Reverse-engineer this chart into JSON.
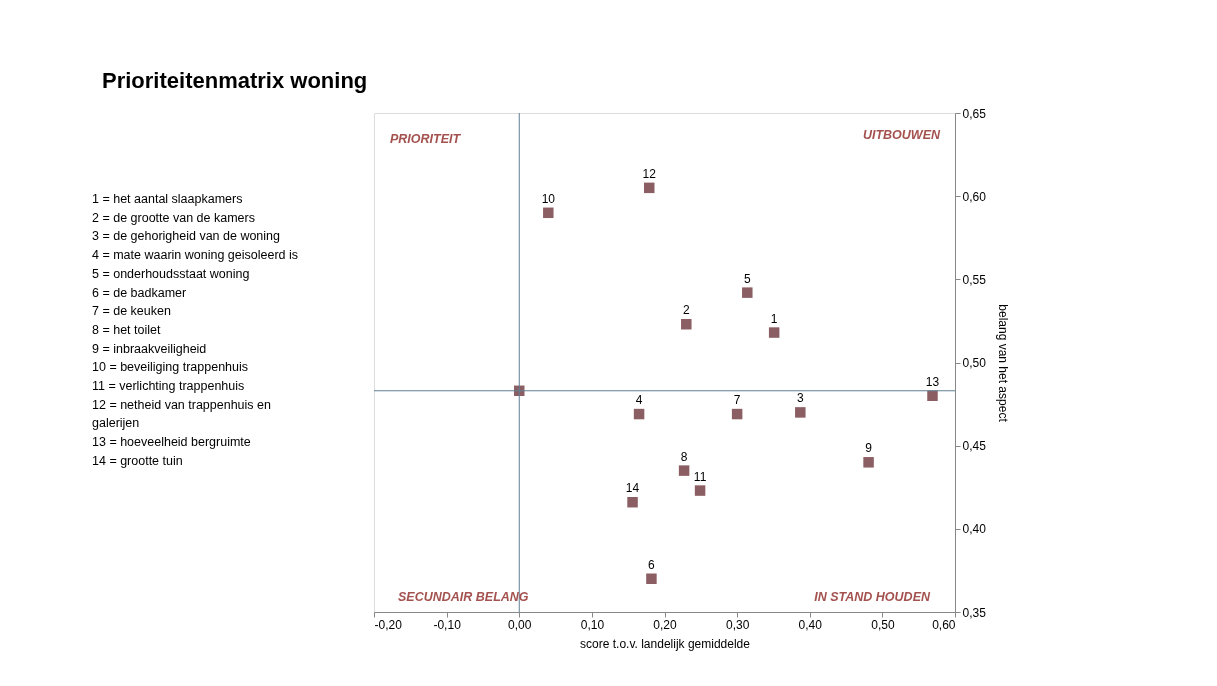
{
  "chart_data": {
    "type": "scatter",
    "title": "Prioriteitenmatrix woning",
    "xlabel": "score t.o.v. landelijk gemiddelde",
    "ylabel": "belang van het aspect",
    "x": [
      0.351,
      0.23,
      0.387,
      0.165,
      0.314,
      0.182,
      0.3,
      0.227,
      0.481,
      0.04,
      0.249,
      0.179,
      0.569,
      0.156,
      0.0
    ],
    "values": [
      0.518,
      0.523,
      0.47,
      0.469,
      0.542,
      0.37,
      0.469,
      0.435,
      0.44,
      0.59,
      0.423,
      0.605,
      0.48,
      0.416,
      0.483
    ],
    "color": "#8b5e63",
    "marker": "square",
    "grid": false,
    "xlim": [
      -0.2,
      0.6
    ],
    "xticks": [
      {
        "value": -0.2,
        "label": "-0,20"
      },
      {
        "value": -0.1,
        "label": "-0,10"
      },
      {
        "value": 0.0,
        "label": "0,00"
      },
      {
        "value": 0.1,
        "label": "0,10"
      },
      {
        "value": 0.2,
        "label": "0,20"
      },
      {
        "value": 0.3,
        "label": "0,30"
      },
      {
        "value": 0.4,
        "label": "0,40"
      },
      {
        "value": 0.5,
        "label": "0,50"
      },
      {
        "value": 0.6,
        "label": "0,60"
      }
    ],
    "ylim": [
      0.35,
      0.65
    ],
    "yticks": [
      {
        "value": 0.35,
        "label": "0,35"
      },
      {
        "value": 0.4,
        "label": "0,40"
      },
      {
        "value": 0.45,
        "label": "0,45"
      },
      {
        "value": 0.5,
        "label": "0,50"
      },
      {
        "value": 0.55,
        "label": "0,55"
      },
      {
        "value": 0.6,
        "label": "0,60"
      },
      {
        "value": 0.65,
        "label": "0,65"
      }
    ],
    "ref_lines": [
      {
        "axis": "x",
        "value": 0.0,
        "color": "#5f7f93"
      },
      {
        "axis": "y",
        "value": 0.483,
        "color": "#5f7f93"
      }
    ],
    "annotations": [
      "PRIORITEIT",
      "UITBOUWEN",
      "SECUNDAIR BELANG",
      "IN STAND HOUDEN",
      "1 = het aantal slaapkamers",
      "2 = de grootte van de kamers",
      "3 = de gehorigheid van de woning",
      "4 = mate waarin woning geisoleerd is",
      "5 = onderhoudsstaat woning",
      "6 = de badkamer",
      "7 = de keuken",
      "8 = het toilet",
      "9 = inbraakveiligheid",
      "10 = beveiliging trappenhuis",
      "11 = verlichting trappenhuis",
      "12 = netheid van trappenhuis en galerijen",
      "13 = hoeveelheid bergruimte",
      "14 = grootte tuin",
      {
        "text": "1",
        "x": 0.351,
        "y": 0.518
      },
      {
        "text": "2",
        "x": 0.23,
        "y": 0.523
      },
      {
        "text": "3",
        "x": 0.387,
        "y": 0.47
      },
      {
        "text": "4",
        "x": 0.165,
        "y": 0.469
      },
      {
        "text": "5",
        "x": 0.314,
        "y": 0.542
      },
      {
        "text": "6",
        "x": 0.182,
        "y": 0.37
      },
      {
        "text": "7",
        "x": 0.3,
        "y": 0.469
      },
      {
        "text": "8",
        "x": 0.227,
        "y": 0.435
      },
      {
        "text": "9",
        "x": 0.481,
        "y": 0.44
      },
      {
        "text": "10",
        "x": 0.04,
        "y": 0.59
      },
      {
        "text": "11",
        "x": 0.249,
        "y": 0.423
      },
      {
        "text": "12",
        "x": 0.179,
        "y": 0.605
      },
      {
        "text": "13",
        "x": 0.569,
        "y": 0.48
      },
      {
        "text": "14",
        "x": 0.156,
        "y": 0.416
      }
    ]
  }
}
